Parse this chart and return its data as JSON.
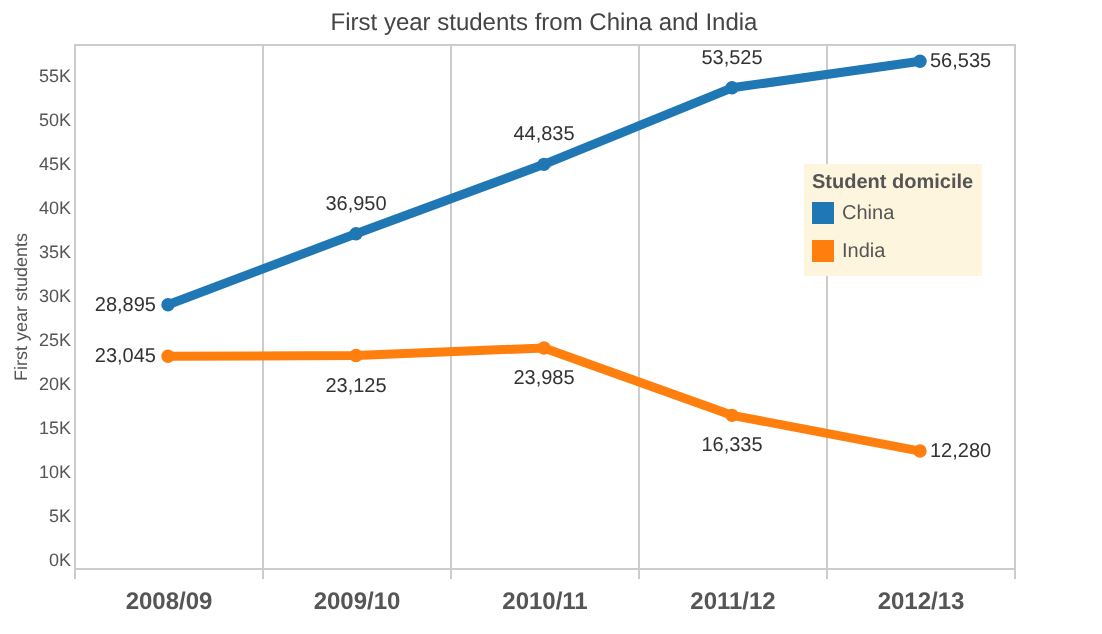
{
  "chart_data": {
    "type": "line",
    "title": "First year students from China and India",
    "ylabel": "First year students",
    "legend_title": "Student domicile",
    "categories": [
      "2008/09",
      "2009/10",
      "2010/11",
      "2011/12",
      "2012/13"
    ],
    "series": [
      {
        "name": "China",
        "color": "#1f77b4",
        "values": [
          28895,
          36950,
          44835,
          53525,
          56535
        ],
        "value_labels": [
          "28,895",
          "36,950",
          "44,835",
          "53,525",
          "56,535"
        ]
      },
      {
        "name": "India",
        "color": "#ff7f0e",
        "values": [
          23045,
          23125,
          23985,
          16335,
          12280
        ],
        "value_labels": [
          "23,045",
          "23,125",
          "23,985",
          "16,335",
          "12,280"
        ]
      }
    ],
    "ylim": [
      -1000,
      58500
    ],
    "yticks": [
      {
        "value": 0,
        "label": "0K"
      },
      {
        "value": 5000,
        "label": "5K"
      },
      {
        "value": 10000,
        "label": "10K"
      },
      {
        "value": 15000,
        "label": "15K"
      },
      {
        "value": 20000,
        "label": "20K"
      },
      {
        "value": 25000,
        "label": "25K"
      },
      {
        "value": 30000,
        "label": "30K"
      },
      {
        "value": 35000,
        "label": "35K"
      },
      {
        "value": 40000,
        "label": "40K"
      },
      {
        "value": 45000,
        "label": "45K"
      },
      {
        "value": 50000,
        "label": "50K"
      },
      {
        "value": 55000,
        "label": "55K"
      }
    ],
    "grid": "x",
    "legend": "top right",
    "marker": "circle",
    "line_style": "solid"
  }
}
